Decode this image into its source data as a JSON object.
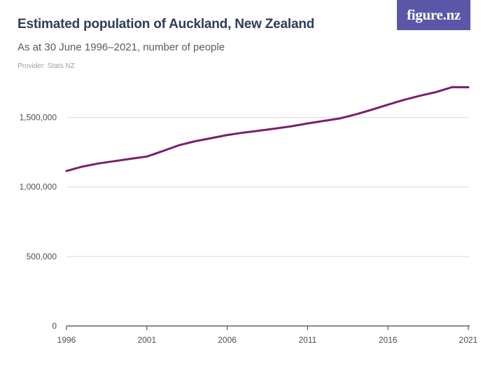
{
  "header": {
    "title": "Estimated population of Auckland, New Zealand",
    "subtitle": "As at 30 June 1996–2021, number of people",
    "provider": "Provider: Stats NZ",
    "logo_text": "figure.nz"
  },
  "colors": {
    "line": "#7a1f6e",
    "grid": "#dcdcdc",
    "logo_bg": "#5b57a8"
  },
  "chart_data": {
    "type": "line",
    "title": "Estimated population of Auckland, New Zealand",
    "subtitle": "As at 30 June 1996–2021, number of people",
    "xlabel": "",
    "ylabel": "",
    "x": [
      1996,
      1997,
      1998,
      1999,
      2000,
      2001,
      2002,
      2003,
      2004,
      2005,
      2006,
      2007,
      2008,
      2009,
      2010,
      2011,
      2012,
      2013,
      2014,
      2015,
      2016,
      2017,
      2018,
      2019,
      2020,
      2021
    ],
    "series": [
      {
        "values": [
          1115000,
          1147000,
          1169000,
          1186000,
          1203000,
          1219000,
          1259000,
          1300000,
          1329000,
          1351000,
          1374000,
          1391000,
          1405000,
          1420000,
          1437000,
          1457000,
          1475000,
          1493000,
          1522000,
          1556000,
          1592000,
          1627000,
          1656000,
          1683000,
          1718000,
          1717000
        ]
      }
    ],
    "xlim": [
      1996,
      2021
    ],
    "ylim": [
      0,
      1750000
    ],
    "yticks": [
      0,
      500000,
      1000000,
      1500000
    ],
    "ytick_labels": [
      "0",
      "500,000",
      "1,000,000",
      "1,500,000"
    ],
    "xticks": [
      1996,
      2001,
      2006,
      2011,
      2016,
      2021
    ],
    "xtick_labels": [
      "1996",
      "2001",
      "2006",
      "2011",
      "2016",
      "2021"
    ],
    "grid": "horizontal",
    "legend": "none"
  }
}
